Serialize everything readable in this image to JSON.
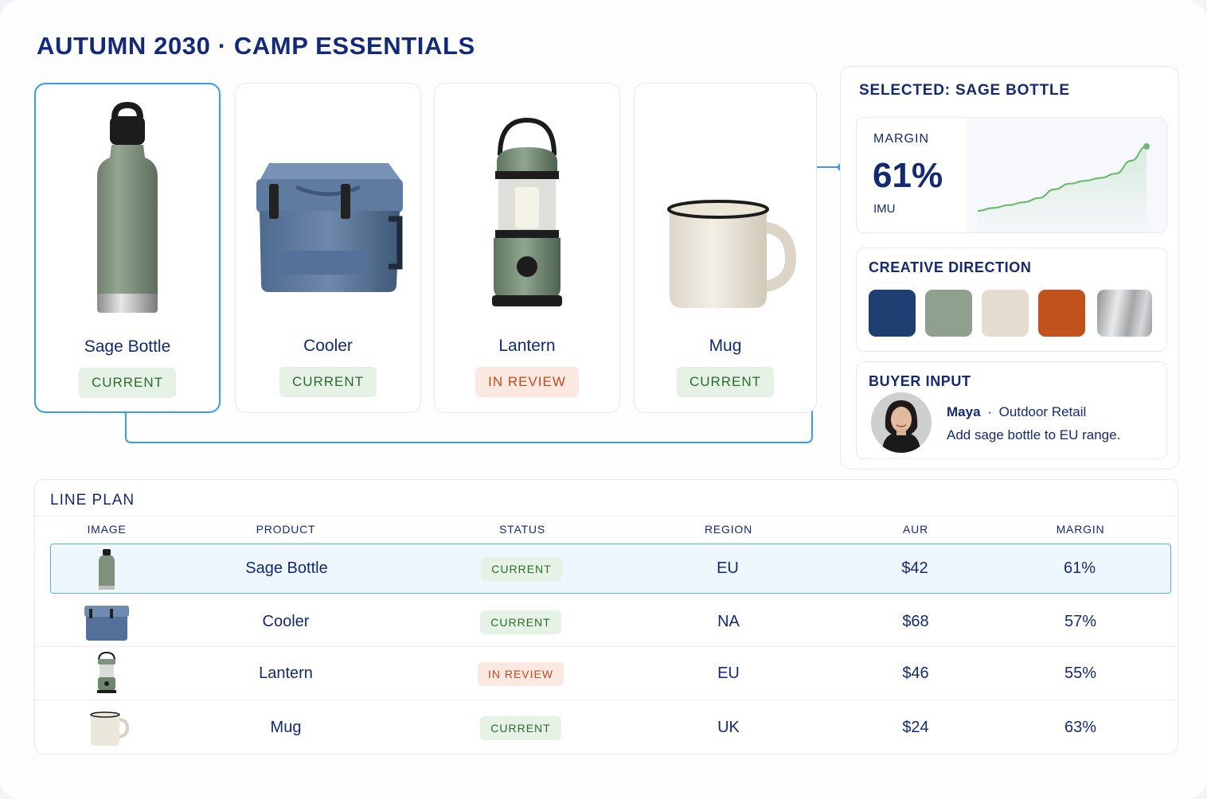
{
  "page": {
    "title": "AUTUMN 2030 · CAMP ESSENTIALS"
  },
  "products": [
    {
      "name": "Sage Bottle",
      "status": "CURRENT",
      "status_kind": "current",
      "icon": "sage-bottle-image"
    },
    {
      "name": "Cooler",
      "status": "CURRENT",
      "status_kind": "current",
      "icon": "cooler-image"
    },
    {
      "name": "Lantern",
      "status": "IN REVIEW",
      "status_kind": "review",
      "icon": "lantern-image"
    },
    {
      "name": "Mug",
      "status": "CURRENT",
      "status_kind": "current",
      "icon": "mug-image"
    }
  ],
  "selected_panel": {
    "title": "SELECTED: SAGE BOTTLE",
    "margin_label": "MARGIN",
    "margin_value": "61%",
    "margin_sub": "IMU",
    "trend_series": [
      0.1,
      0.14,
      0.18,
      0.22,
      0.28,
      0.4,
      0.48,
      0.52,
      0.56,
      0.62,
      0.8,
      1.0
    ],
    "creative_title": "CREATIVE DIRECTION",
    "swatches": [
      "#1f3f73",
      "#8fa08e",
      "#e5dcd0",
      "#c1521e",
      "#b4b6b8"
    ],
    "buyer_title": "BUYER INPUT",
    "buyer_name": "Maya",
    "buyer_org": "Outdoor Retail",
    "buyer_message": "Add sage bottle to EU range."
  },
  "line_plan": {
    "title": "LINE PLAN",
    "columns": [
      "IMAGE",
      "PRODUCT",
      "STATUS",
      "REGION",
      "AUR",
      "MARGIN"
    ],
    "rows": [
      {
        "product": "Sage Bottle",
        "status": "CURRENT",
        "status_kind": "current",
        "region": "EU",
        "aur": "$42",
        "margin": "61%"
      },
      {
        "product": "Cooler",
        "status": "CURRENT",
        "status_kind": "current",
        "region": "NA",
        "aur": "$68",
        "margin": "57%"
      },
      {
        "product": "Lantern",
        "status": "IN REVIEW",
        "status_kind": "review",
        "region": "EU",
        "aur": "$46",
        "margin": "55%"
      },
      {
        "product": "Mug",
        "status": "CURRENT",
        "status_kind": "current",
        "region": "UK",
        "aur": "$24",
        "margin": "63%"
      }
    ]
  },
  "colors": {
    "accent": "#3d9be3",
    "navy": "#142a6e",
    "current_bg": "#e6f2e6",
    "review_bg": "#fbe9e1",
    "trend": "#6dbb73"
  }
}
